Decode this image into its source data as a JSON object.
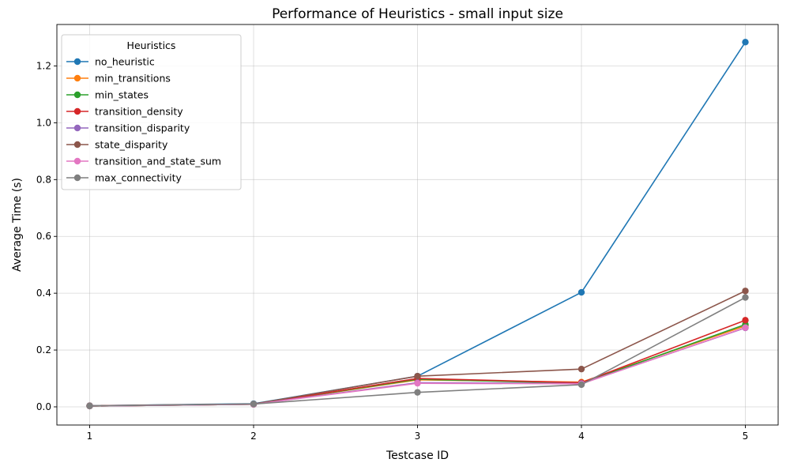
{
  "chart_data": {
    "type": "line",
    "title": "Performance of Heuristics - small input size",
    "xlabel": "Testcase ID",
    "ylabel": "Average Time (s)",
    "categories": [
      "1",
      "2",
      "3",
      "4",
      "5"
    ],
    "xlim": [
      0.8,
      5.2
    ],
    "ylim": [
      -0.064,
      1.346
    ],
    "yticks": [
      0.0,
      0.2,
      0.4,
      0.6,
      0.8,
      1.0,
      1.2
    ],
    "ytick_labels": [
      "0.0",
      "0.2",
      "0.4",
      "0.6",
      "0.8",
      "1.0",
      "1.2"
    ],
    "grid": true,
    "legend": {
      "title": "Heuristics",
      "placement": "top-left"
    },
    "series": [
      {
        "name": "no_heuristic",
        "color": "#1f77b4",
        "values": [
          0.004,
          0.011,
          0.108,
          0.403,
          1.284
        ]
      },
      {
        "name": "min_transitions",
        "color": "#ff7f0e",
        "values": [
          0.003,
          0.009,
          0.095,
          0.087,
          0.285
        ]
      },
      {
        "name": "min_states",
        "color": "#2ca02c",
        "values": [
          0.003,
          0.009,
          0.097,
          0.083,
          0.29
        ]
      },
      {
        "name": "transition_density",
        "color": "#d62728",
        "values": [
          0.003,
          0.009,
          0.1,
          0.085,
          0.305
        ]
      },
      {
        "name": "transition_disparity",
        "color": "#9467bd",
        "values": [
          0.003,
          0.009,
          0.085,
          0.082,
          0.278
        ]
      },
      {
        "name": "state_disparity",
        "color": "#8c564b",
        "values": [
          0.004,
          0.01,
          0.108,
          0.133,
          0.408
        ]
      },
      {
        "name": "transition_and_state_sum",
        "color": "#e377c2",
        "values": [
          0.003,
          0.009,
          0.083,
          0.081,
          0.279
        ]
      },
      {
        "name": "max_connectivity",
        "color": "#7f7f7f",
        "values": [
          0.003,
          0.01,
          0.051,
          0.078,
          0.385
        ]
      }
    ]
  }
}
